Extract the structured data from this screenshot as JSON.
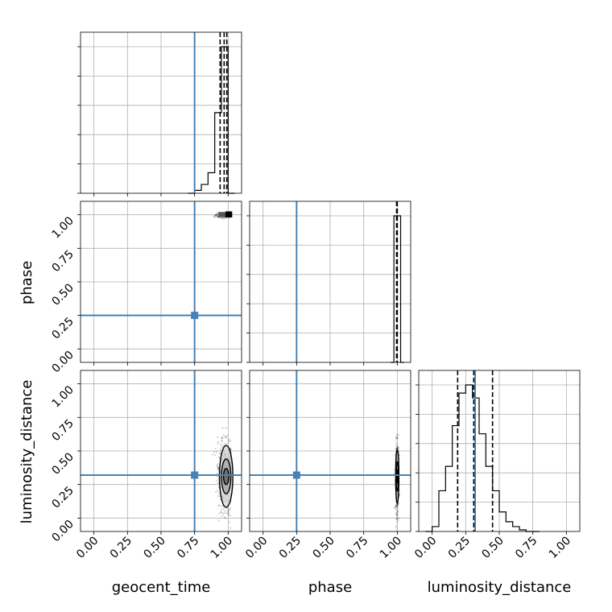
{
  "chart_data": {
    "type": "corner",
    "parameters": [
      "geocent_time",
      "phase",
      "luminosity_distance"
    ],
    "truths": [
      0.75,
      0.25,
      0.32
    ],
    "truth_color": "#4682b4",
    "tick_values": [
      0.0,
      0.25,
      0.5,
      0.75,
      1.0
    ],
    "tick_labels": [
      "0.00",
      "0.25",
      "0.50",
      "0.75",
      "1.00"
    ],
    "axis_range": [
      -0.1,
      1.1
    ],
    "grid": true,
    "quantiles": {
      "geocent_time": [
        0.94,
        0.97,
        0.99
      ],
      "phase": [
        0.995,
        0.999,
        1.0
      ],
      "luminosity_distance": [
        0.19,
        0.31,
        0.45
      ]
    },
    "histograms": {
      "geocent_time": {
        "bin_edges": [
          0.7,
          0.75,
          0.8,
          0.85,
          0.9,
          0.95,
          1.0,
          1.05
        ],
        "counts": [
          0.0,
          0.02,
          0.06,
          0.14,
          0.55,
          1.0,
          0.0
        ]
      },
      "phase": {
        "bin_edges": [
          0.95,
          0.975,
          1.0,
          1.025,
          1.05
        ],
        "counts": [
          0.0,
          1.0,
          1.0,
          0.0
        ]
      },
      "luminosity_distance": {
        "bin_edges": [
          -0.05,
          0.0,
          0.05,
          0.1,
          0.15,
          0.2,
          0.25,
          0.3,
          0.35,
          0.4,
          0.45,
          0.5,
          0.55,
          0.6,
          0.65,
          0.7,
          0.75,
          0.8
        ],
        "counts": [
          0.0,
          0.03,
          0.25,
          0.4,
          0.65,
          0.85,
          0.9,
          0.82,
          0.6,
          0.4,
          0.25,
          0.12,
          0.06,
          0.03,
          0.01,
          0.0,
          0.0
        ]
      }
    },
    "scatter_2d": {
      "phase_vs_geocent_time": {
        "x_center": 0.97,
        "x_spread": 0.035,
        "y_center": 0.995,
        "y_spread": 0.01,
        "n_points": 160
      },
      "luminosity_distance_vs_geocent_time": {
        "x_center": 0.985,
        "x_spread": 0.03,
        "y_center": 0.31,
        "y_spread": 0.13,
        "n_points": 600,
        "contour_levels": [
          {
            "rx": 0.05,
            "ry": 0.23
          },
          {
            "rx": 0.035,
            "ry": 0.13
          },
          {
            "rx": 0.02,
            "ry": 0.06
          }
        ]
      },
      "luminosity_distance_vs_phase": {
        "x_center": 1.0,
        "x_spread": 0.006,
        "y_center": 0.31,
        "y_spread": 0.13,
        "n_points": 400,
        "contour_levels": [
          {
            "rx": 0.012,
            "ry": 0.2
          },
          {
            "rx": 0.008,
            "ry": 0.11
          },
          {
            "rx": 0.004,
            "ry": 0.05
          }
        ]
      }
    }
  }
}
